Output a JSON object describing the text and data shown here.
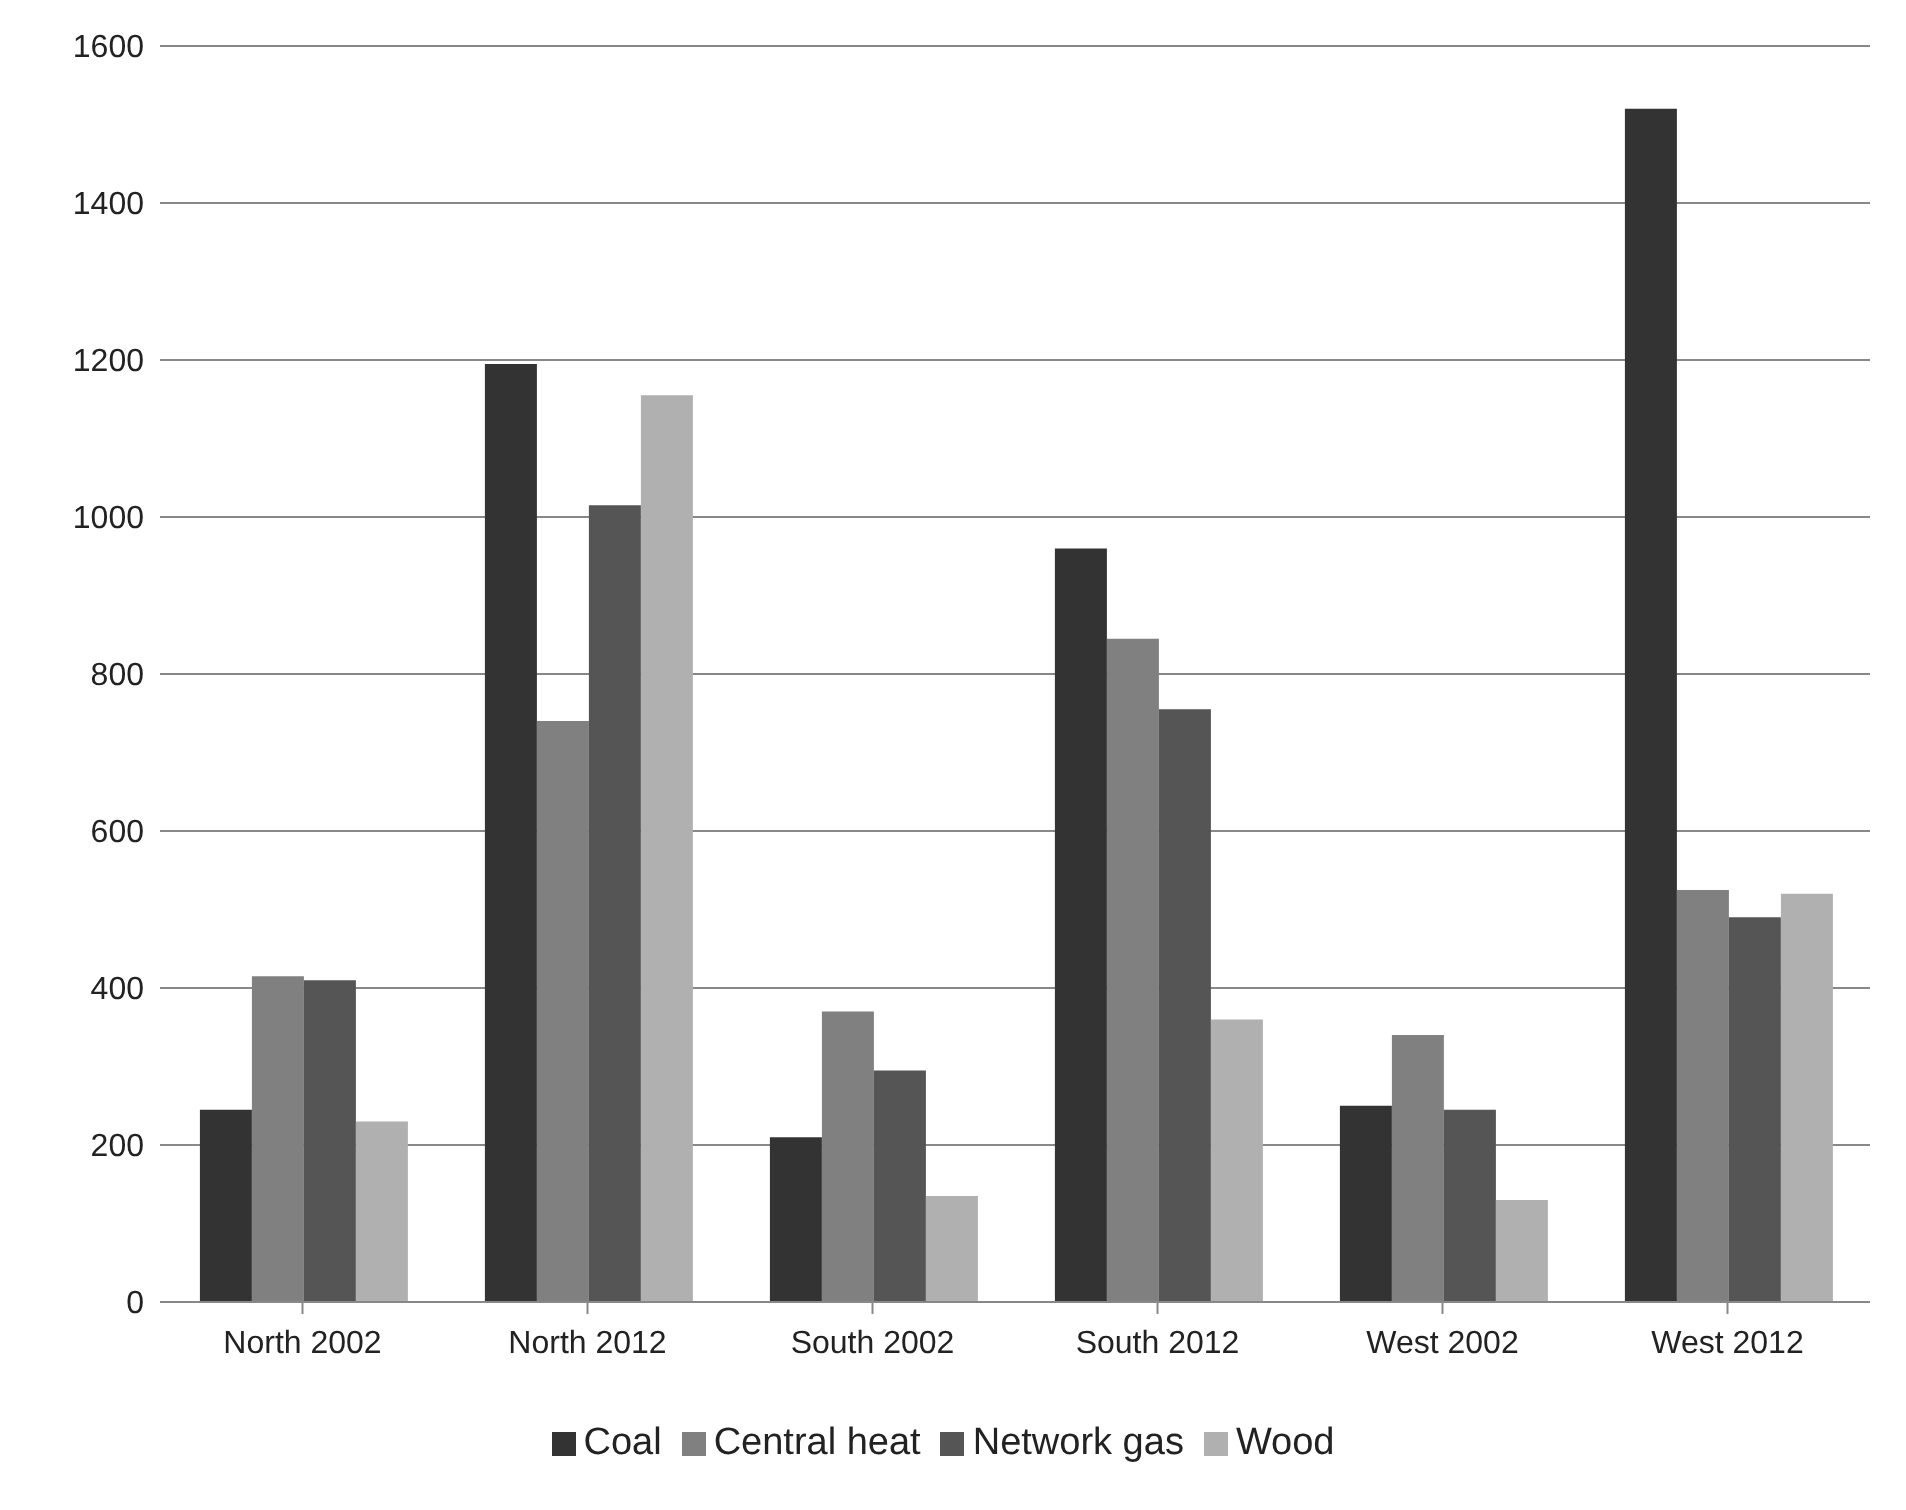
{
  "chart_data": {
    "type": "bar",
    "categories": [
      "North 2002",
      "North 2012",
      "South 2002",
      "South 2012",
      "West 2002",
      "West 2012"
    ],
    "series": [
      {
        "name": "Coal",
        "color": "#333333",
        "values": [
          245,
          1195,
          210,
          960,
          250,
          1520
        ]
      },
      {
        "name": "Central heat",
        "color": "#808080",
        "values": [
          415,
          740,
          370,
          845,
          340,
          525
        ]
      },
      {
        "name": "Network gas",
        "color": "#555555",
        "values": [
          410,
          1015,
          295,
          755,
          245,
          490
        ]
      },
      {
        "name": "Wood",
        "color": "#b0b0b0",
        "values": [
          230,
          1155,
          135,
          360,
          130,
          520
        ]
      }
    ],
    "ylim": [
      0,
      1600
    ],
    "yticks": [
      0,
      200,
      400,
      600,
      800,
      1000,
      1200,
      1400,
      1600
    ],
    "grid": "y",
    "legend": "bottom"
  }
}
